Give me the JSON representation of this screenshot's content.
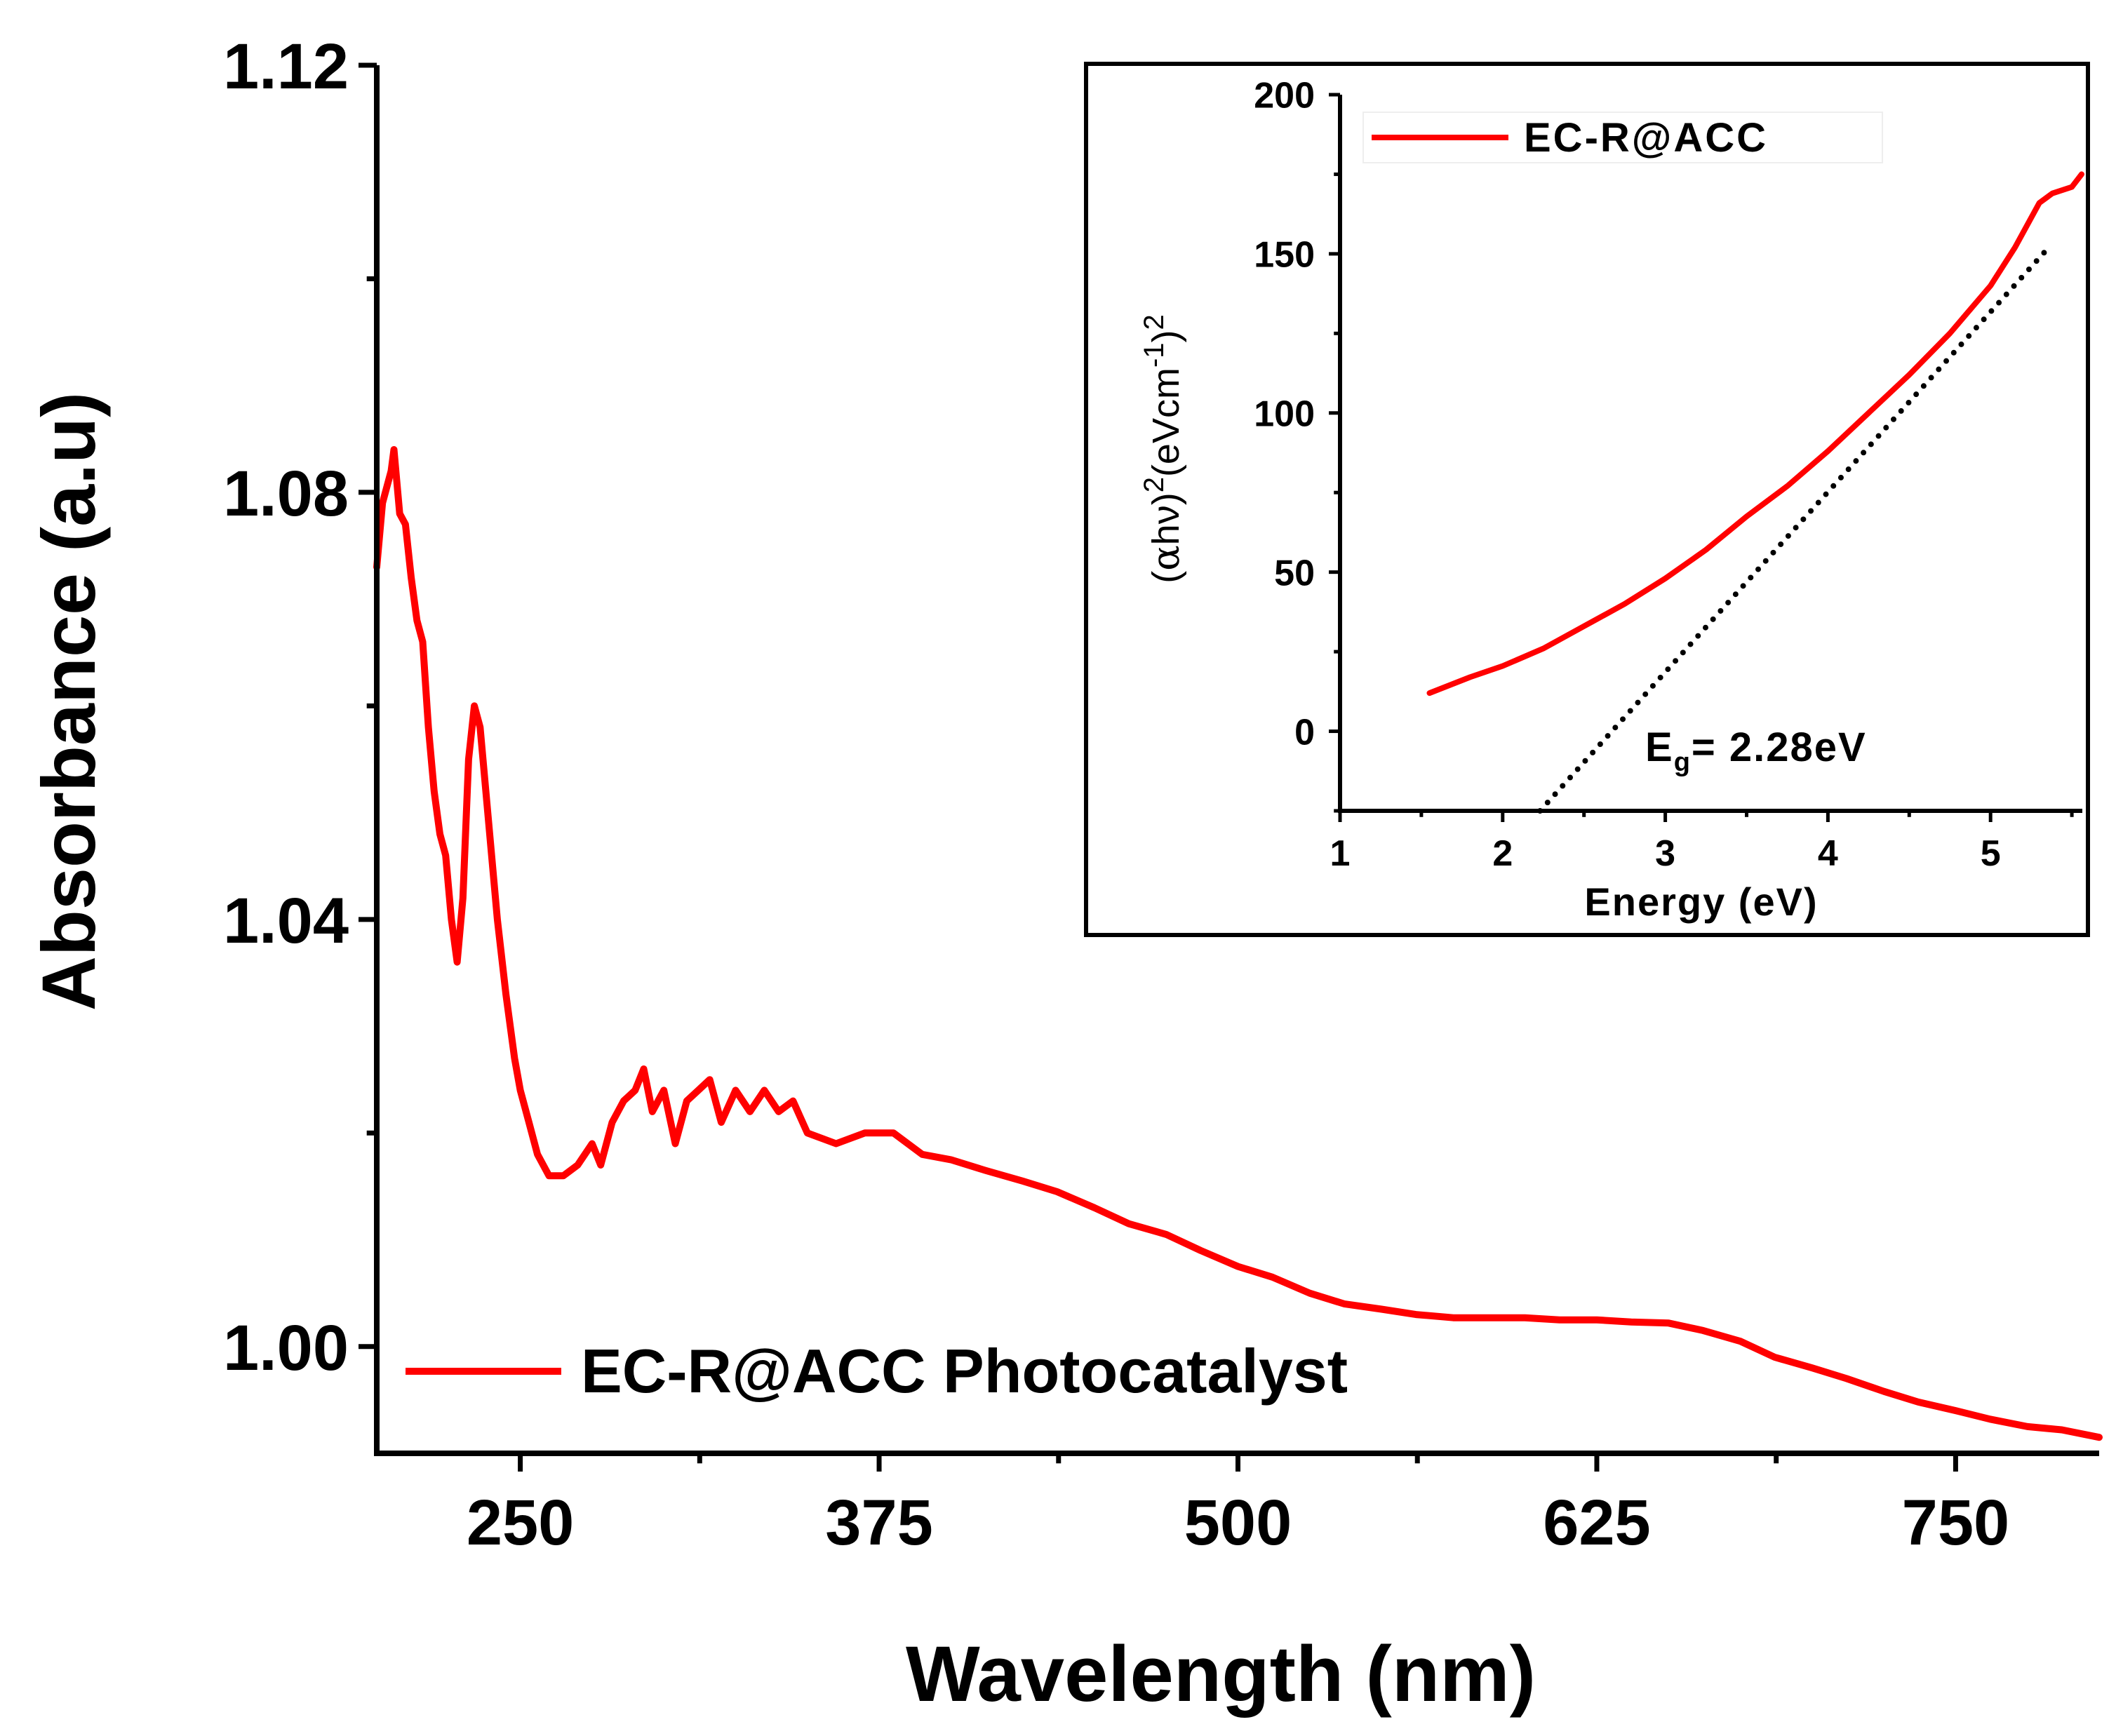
{
  "chart_data": [
    {
      "type": "line",
      "xlabel": "Wavelength (nm)",
      "ylabel": "Absorbance (a.u)",
      "xlim": [
        200,
        800
      ],
      "ylim": [
        0.99,
        1.12
      ],
      "xticks": [
        250,
        375,
        500,
        625,
        750
      ],
      "xtick_labels": [
        "250",
        "375",
        "500",
        "625",
        "750"
      ],
      "yticks": [
        1.0,
        1.04,
        1.08,
        1.12
      ],
      "ytick_labels": [
        "1.00",
        "1.04",
        "1.08",
        "1.12"
      ],
      "grid": false,
      "legend_position": "bottom-left",
      "series": [
        {
          "name": "EC-R@ACC Photocatalyst",
          "color": "#ff0000",
          "x": [
            200,
            202,
            205,
            206,
            208,
            210,
            212,
            214,
            216,
            218,
            220,
            222,
            224,
            226,
            228,
            230,
            232,
            234,
            236,
            238,
            240,
            242,
            245,
            248,
            250,
            253,
            256,
            260,
            265,
            270,
            275,
            278,
            282,
            286,
            290,
            293,
            296,
            300,
            304,
            308,
            312,
            316,
            320,
            325,
            330,
            335,
            340,
            345,
            350,
            360,
            370,
            380,
            390,
            400,
            412,
            425,
            437,
            450,
            462,
            475,
            487,
            500,
            512,
            525,
            537,
            550,
            562,
            575,
            587,
            600,
            612,
            625,
            637,
            650,
            662,
            675,
            687,
            700,
            712,
            725,
            737,
            750,
            762,
            775,
            787,
            800
          ],
          "y": [
            1.073,
            1.079,
            1.082,
            1.084,
            1.078,
            1.077,
            1.072,
            1.068,
            1.066,
            1.058,
            1.052,
            1.048,
            1.046,
            1.04,
            1.036,
            1.042,
            1.055,
            1.06,
            1.058,
            1.052,
            1.046,
            1.04,
            1.033,
            1.027,
            1.024,
            1.021,
            1.018,
            1.016,
            1.016,
            1.017,
            1.019,
            1.017,
            1.021,
            1.023,
            1.024,
            1.026,
            1.022,
            1.024,
            1.019,
            1.023,
            1.024,
            1.025,
            1.021,
            1.024,
            1.022,
            1.024,
            1.022,
            1.023,
            1.02,
            1.019,
            1.02,
            1.02,
            1.018,
            1.0175,
            1.0165,
            1.0155,
            1.0145,
            1.013,
            1.0115,
            1.0105,
            1.009,
            1.0075,
            1.0065,
            1.005,
            1.004,
            1.0035,
            1.003,
            1.0027,
            1.0027,
            1.0027,
            1.0025,
            1.0025,
            1.0023,
            1.0022,
            1.0015,
            1.0005,
            0.999,
            0.998,
            0.997,
            0.9958,
            0.9948,
            0.994,
            0.9932,
            0.9925,
            0.9922,
            0.9915
          ]
        }
      ]
    },
    {
      "type": "line",
      "xlabel": "Energy (eV)",
      "ylabel_parts": {
        "open": "(",
        "alpha": "α",
        "hv": "hν",
        "close": ")",
        "sup1": "2",
        "unit": "(eVcm",
        "sup2": "-1",
        "unit_close": ")",
        "sup3": "2"
      },
      "xlim": [
        1,
        5.56
      ],
      "ylim": [
        -25,
        200
      ],
      "xticks": [
        1,
        2,
        3,
        4,
        5
      ],
      "xtick_labels": [
        "1",
        "2",
        "3",
        "4",
        "5"
      ],
      "yticks": [
        0,
        50,
        100,
        150,
        200
      ],
      "ytick_labels": [
        "0",
        "50",
        "100",
        "150",
        "200"
      ],
      "grid": false,
      "legend_position": "top-left",
      "annotation": {
        "main": "E",
        "sub": "g",
        "rest": "= 2.28eV"
      },
      "series": [
        {
          "name": "EC-R@ACC",
          "color": "#ff0000",
          "x": [
            1.55,
            1.8,
            2.0,
            2.25,
            2.5,
            2.75,
            3.0,
            3.25,
            3.5,
            3.75,
            4.0,
            4.25,
            4.5,
            4.75,
            5.0,
            5.15,
            5.3,
            5.38,
            5.5,
            5.56
          ],
          "y": [
            12,
            17,
            20.5,
            26,
            33,
            40,
            48,
            57,
            67.5,
            77,
            88,
            100,
            112,
            125,
            140,
            152,
            166,
            169,
            171,
            175
          ]
        },
        {
          "style": "dotted",
          "color": "#000000",
          "x": [
            2.23,
            5.34
          ],
          "y": [
            -25,
            151
          ]
        }
      ]
    }
  ]
}
